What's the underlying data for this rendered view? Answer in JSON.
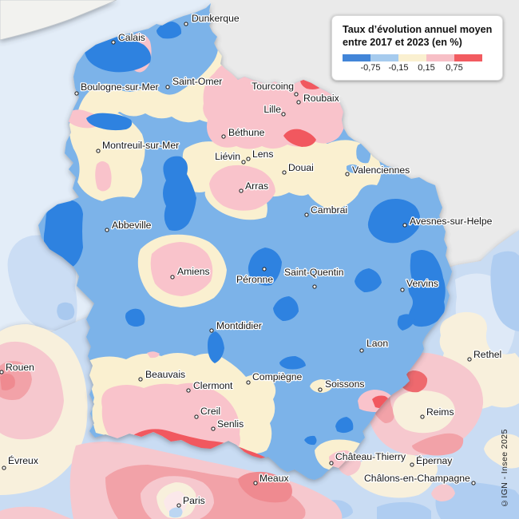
{
  "legend": {
    "title_line1": "Taux d’évolution annuel moyen",
    "title_line2": "entre 2017 et 2023 (en %)",
    "ticks": [
      "-0,75",
      "-0,15",
      "0,15",
      "0,75"
    ],
    "colors": [
      "#4285D8",
      "#A6CBEE",
      "#FAF0D0",
      "#F7BFC6",
      "#F25B60"
    ]
  },
  "copyright": "©IGN - Insee 2025",
  "map_colors": {
    "sea": "#E3EDF8",
    "neighbor_country": "#EAEAEA",
    "region_base_blue": "#7CB3E9",
    "region_dark_blue": "#2E82E0",
    "region_cream": "#FAF0D0",
    "region_pink": "#F9C3CB",
    "region_red": "#F1585E",
    "outside_pale_blue": "#C9DCF3",
    "outside_cream": "#F8F0DC",
    "outside_pink": "#F6C8CE",
    "outside_red": "#F2A2A8"
  },
  "cities": [
    {
      "name": "Dunkerque",
      "dot": [
        233,
        30
      ],
      "label": [
        240,
        27
      ],
      "anchor": "start"
    },
    {
      "name": "Calais",
      "dot": [
        142,
        53
      ],
      "label": [
        148,
        51
      ],
      "anchor": "start"
    },
    {
      "name": "Boulogne-sur-Mer",
      "dot": [
        96,
        117
      ],
      "label": [
        101,
        113
      ],
      "anchor": "start"
    },
    {
      "name": "Saint-Omer",
      "dot": [
        210,
        109
      ],
      "label": [
        216,
        106
      ],
      "anchor": "start"
    },
    {
      "name": "Tourcoing",
      "dot": [
        371,
        118
      ],
      "label": [
        368,
        112
      ],
      "anchor": "end"
    },
    {
      "name": "Roubaix",
      "dot": [
        374,
        128
      ],
      "label": [
        380,
        127
      ],
      "anchor": "start"
    },
    {
      "name": "Lille",
      "dot": [
        355,
        143
      ],
      "label": [
        352,
        141
      ],
      "anchor": "end"
    },
    {
      "name": "Béthune",
      "dot": [
        280,
        171
      ],
      "label": [
        286,
        170
      ],
      "anchor": "start"
    },
    {
      "name": "Liévin",
      "dot": [
        305,
        203
      ],
      "label": [
        301,
        200
      ],
      "anchor": "end"
    },
    {
      "name": "Lens",
      "dot": [
        311,
        199
      ],
      "label": [
        316,
        197
      ],
      "anchor": "start"
    },
    {
      "name": "Douai",
      "dot": [
        356,
        216
      ],
      "label": [
        361,
        214
      ],
      "anchor": "start"
    },
    {
      "name": "Valenciennes",
      "dot": [
        435,
        218
      ],
      "label": [
        441,
        217
      ],
      "anchor": "start"
    },
    {
      "name": "Arras",
      "dot": [
        302,
        239
      ],
      "label": [
        307,
        237
      ],
      "anchor": "start"
    },
    {
      "name": "Cambrai",
      "dot": [
        384,
        269
      ],
      "label": [
        389,
        267
      ],
      "anchor": "start"
    },
    {
      "name": "Avesnes-sur-Helpe",
      "dot": [
        507,
        282
      ],
      "label": [
        513,
        281
      ],
      "anchor": "start"
    },
    {
      "name": "Abbeville",
      "dot": [
        134,
        288
      ],
      "label": [
        140,
        286
      ],
      "anchor": "start"
    },
    {
      "name": "Montreuil-sur-Mer",
      "dot": [
        123,
        189
      ],
      "label": [
        128,
        186
      ],
      "anchor": "start"
    },
    {
      "name": "Amiens",
      "dot": [
        216,
        347
      ],
      "label": [
        222,
        344
      ],
      "anchor": "start"
    },
    {
      "name": "Péronne",
      "dot": [
        331,
        337
      ],
      "label": [
        296,
        354
      ],
      "anchor": "start"
    },
    {
      "name": "Saint-Quentin",
      "dot": [
        394,
        359
      ],
      "label": [
        356,
        345
      ],
      "anchor": "start"
    },
    {
      "name": "Vervins",
      "dot": [
        504,
        363
      ],
      "label": [
        509,
        359
      ],
      "anchor": "start"
    },
    {
      "name": "Montdidier",
      "dot": [
        265,
        414
      ],
      "label": [
        271,
        412
      ],
      "anchor": "start"
    },
    {
      "name": "Laon",
      "dot": [
        453,
        439
      ],
      "label": [
        459,
        434
      ],
      "anchor": "start"
    },
    {
      "name": "Rethel",
      "dot": [
        588,
        450
      ],
      "label": [
        593,
        448
      ],
      "anchor": "start"
    },
    {
      "name": "Rouen",
      "dot": [
        2,
        466
      ],
      "label": [
        7,
        464
      ],
      "anchor": "start"
    },
    {
      "name": "Beauvais",
      "dot": [
        176,
        475
      ],
      "label": [
        182,
        473
      ],
      "anchor": "start"
    },
    {
      "name": "Clermont",
      "dot": [
        236,
        489
      ],
      "label": [
        242,
        487
      ],
      "anchor": "start"
    },
    {
      "name": "Compiègne",
      "dot": [
        311,
        479
      ],
      "label": [
        316,
        476
      ],
      "anchor": "start"
    },
    {
      "name": "Soissons",
      "dot": [
        401,
        488
      ],
      "label": [
        407,
        485
      ],
      "anchor": "start"
    },
    {
      "name": "Creil",
      "dot": [
        246,
        522
      ],
      "label": [
        251,
        519
      ],
      "anchor": "start"
    },
    {
      "name": "Senlis",
      "dot": [
        267,
        537
      ],
      "label": [
        272,
        535
      ],
      "anchor": "start"
    },
    {
      "name": "Reims",
      "dot": [
        529,
        522
      ],
      "label": [
        534,
        520
      ],
      "anchor": "start"
    },
    {
      "name": "Évreux",
      "dot": [
        5,
        586
      ],
      "label": [
        10,
        581
      ],
      "anchor": "start"
    },
    {
      "name": "Château-Thierry",
      "dot": [
        415,
        580
      ],
      "label": [
        420,
        576
      ],
      "anchor": "start"
    },
    {
      "name": "Épernay",
      "dot": [
        516,
        582
      ],
      "label": [
        521,
        581
      ],
      "anchor": "start"
    },
    {
      "name": "Châlons-en-Champagne",
      "dot": [
        593,
        605
      ],
      "label": [
        456,
        603
      ],
      "anchor": "start"
    },
    {
      "name": "Meaux",
      "dot": [
        320,
        605
      ],
      "label": [
        325,
        603
      ],
      "anchor": "start"
    },
    {
      "name": "Paris",
      "dot": [
        224,
        633
      ],
      "label": [
        229,
        631
      ],
      "anchor": "start"
    }
  ]
}
